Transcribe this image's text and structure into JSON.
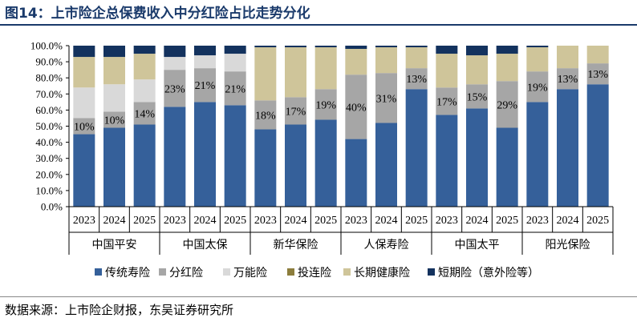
{
  "title": "图14：上市险企总保费收入中分红险占比走势分化",
  "source": "数据来源：上市险企财报，东吴证券研究所",
  "chart_data": {
    "type": "bar",
    "stacked": true,
    "title": "",
    "xlabel": "",
    "ylabel": "",
    "ylim": [
      0,
      100
    ],
    "yticks": [
      "0.0%",
      "10.0%",
      "20.0%",
      "30.0%",
      "40.0%",
      "50.0%",
      "60.0%",
      "70.0%",
      "80.0%",
      "90.0%",
      "100.0%"
    ],
    "groups": [
      "中国平安",
      "中国太保",
      "新华保险",
      "人保寿险",
      "中国太平",
      "阳光保险"
    ],
    "years": [
      "2023",
      "2024",
      "2025"
    ],
    "legend_position": "bottom",
    "grid": false,
    "series": [
      {
        "name": "传统寿险",
        "color": "#35609a",
        "values": [
          45,
          49,
          51,
          62,
          65,
          63,
          48,
          51,
          54,
          42,
          52,
          73,
          57,
          61,
          49,
          65,
          73,
          76
        ]
      },
      {
        "name": "分红险",
        "color": "#a6a6a6",
        "values": [
          10,
          10,
          14,
          23,
          21,
          21,
          18,
          17,
          19,
          40,
          31,
          13,
          17,
          15,
          29,
          19,
          13,
          13
        ]
      },
      {
        "name": "万能险",
        "color": "#d9d9d9",
        "values": [
          19,
          17,
          14,
          8,
          8,
          11,
          0,
          0,
          0,
          0,
          0,
          0,
          0,
          0,
          0,
          0,
          0,
          0
        ]
      },
      {
        "name": "投连险",
        "color": "#8c7d3c",
        "values": [
          0,
          0,
          0,
          0,
          0,
          0,
          0,
          0,
          0,
          0,
          0,
          0,
          0,
          0,
          0,
          0,
          0,
          0
        ]
      },
      {
        "name": "长期健康险",
        "color": "#cfc59a",
        "values": [
          19,
          17,
          16,
          0,
          0,
          0,
          33,
          31,
          26,
          16,
          16,
          13,
          21,
          18,
          17,
          15,
          14,
          11
        ]
      },
      {
        "name": "短期险（意外险等）",
        "color": "#13325e",
        "values": [
          7,
          7,
          5,
          7,
          6,
          5,
          1,
          1,
          1,
          2,
          1,
          1,
          5,
          6,
          5,
          1,
          0,
          0
        ]
      }
    ],
    "data_labels": [
      "10%",
      "10%",
      "14%",
      "23%",
      "21%",
      "21%",
      "18%",
      "17%",
      "19%",
      "40%",
      "31%",
      "13%",
      "17%",
      "15%",
      "29%",
      "19%",
      "13%",
      "13%"
    ]
  }
}
